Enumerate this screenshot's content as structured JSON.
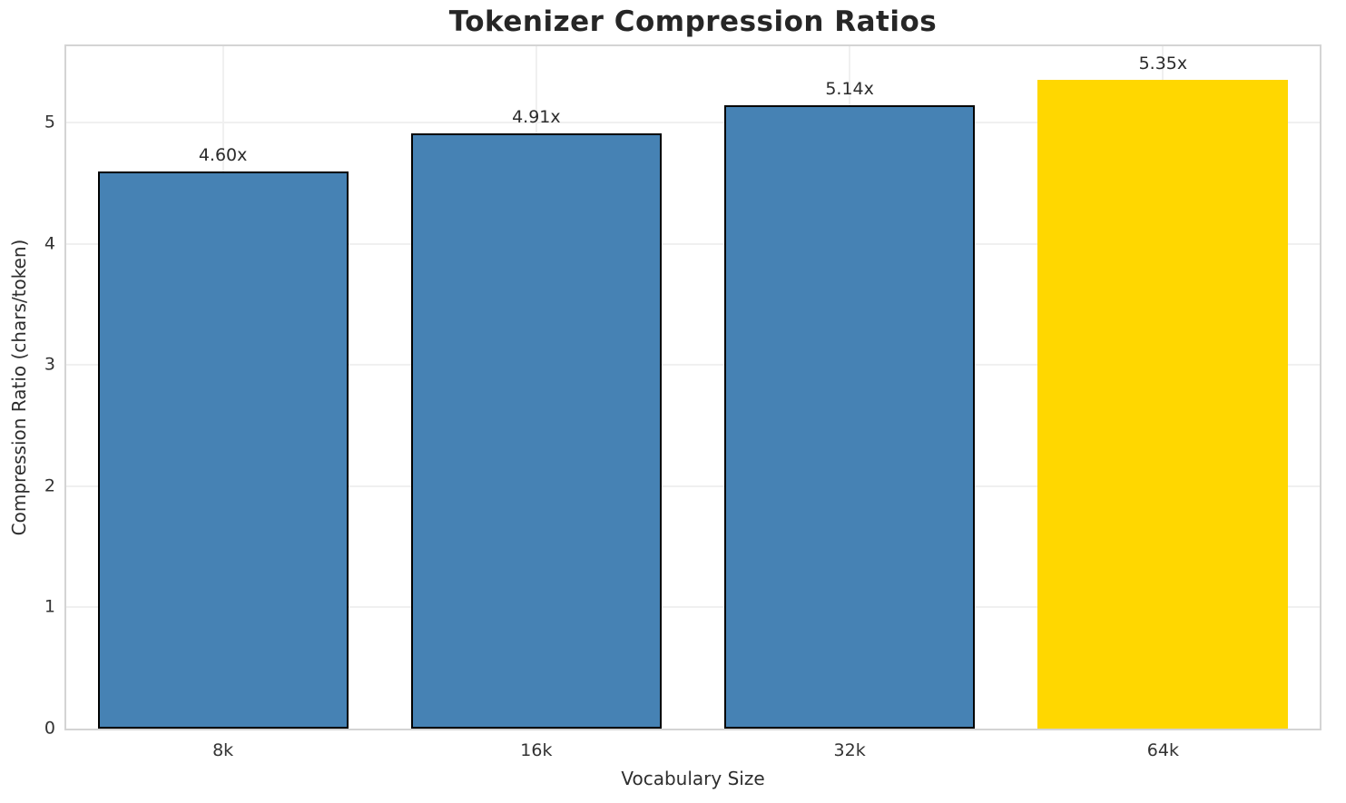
{
  "chart_data": {
    "type": "bar",
    "title": "Tokenizer Compression Ratios",
    "xlabel": "Vocabulary Size",
    "ylabel": "Compression Ratio (chars/token)",
    "categories": [
      "8k",
      "16k",
      "32k",
      "64k"
    ],
    "values": [
      4.6,
      4.91,
      5.14,
      5.35
    ],
    "bar_labels": [
      "4.60x",
      "4.91x",
      "5.14x",
      "5.35x"
    ],
    "bar_colors": [
      "#4682B4",
      "#4682B4",
      "#4682B4",
      "#FFD700"
    ],
    "bar_edge_colors": [
      "#000000",
      "#000000",
      "#000000",
      "none"
    ],
    "yticks": [
      0,
      1,
      2,
      3,
      4,
      5
    ],
    "ylim": [
      0,
      5.63
    ],
    "grid": true,
    "legend": "none",
    "colors": {
      "bar_default": "#4682B4",
      "bar_highlight": "#FFD700",
      "bar_edge": "#000000",
      "gridline": "#f0f0f0",
      "spine": "#d4d4d4",
      "text": "#262626"
    }
  }
}
